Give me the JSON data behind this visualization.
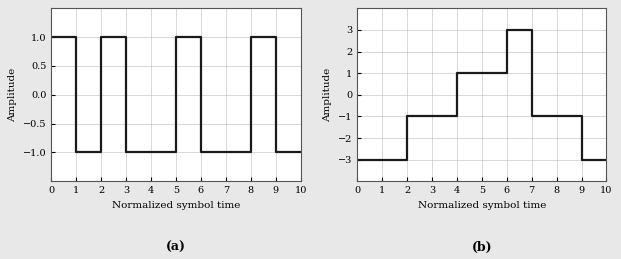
{
  "plot_a": {
    "step_x": [
      0,
      1,
      1,
      2,
      2,
      3,
      3,
      5,
      5,
      6,
      6,
      8,
      8,
      9,
      9,
      10
    ],
    "step_y": [
      1,
      1,
      -1,
      -1,
      1,
      1,
      -1,
      -1,
      1,
      1,
      -1,
      -1,
      1,
      1,
      -1,
      -1
    ],
    "xlim": [
      0,
      10
    ],
    "ylim": [
      -1.5,
      1.5
    ],
    "xticks": [
      0,
      1,
      2,
      3,
      4,
      5,
      6,
      7,
      8,
      9,
      10
    ],
    "yticks": [
      -1.0,
      -0.5,
      0,
      0.5,
      1.0
    ],
    "xlabel": "Normalized symbol time",
    "ylabel": "Amplitude",
    "label": "(a)"
  },
  "plot_b": {
    "step_x": [
      0,
      2,
      2,
      4,
      4,
      6,
      6,
      7,
      7,
      9,
      9,
      10
    ],
    "step_y": [
      -3,
      -3,
      -1,
      -1,
      1,
      1,
      3,
      3,
      -1,
      -1,
      -3,
      -3
    ],
    "xlim": [
      0,
      10
    ],
    "ylim": [
      -4,
      4
    ],
    "xticks": [
      0,
      1,
      2,
      3,
      4,
      5,
      6,
      7,
      8,
      9,
      10
    ],
    "yticks": [
      -3,
      -2,
      -1,
      0,
      1,
      2,
      3
    ],
    "xlabel": "Normalized symbol time",
    "ylabel": "Amplitude",
    "label": "(b)"
  },
  "line_color": "#1a1a1a",
  "line_width": 1.6,
  "grid_color": "#bbbbbb",
  "grid_alpha": 0.8,
  "ax_background": "#ffffff",
  "fig_background": "#e8e8e8",
  "label_fontsize": 7.5,
  "tick_fontsize": 7,
  "sublabel_fontsize": 9,
  "spine_color": "#555555",
  "spine_linewidth": 0.8
}
